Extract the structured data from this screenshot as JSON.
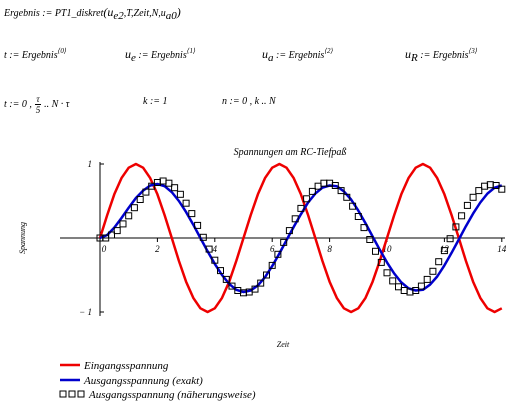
{
  "equations": {
    "line1": {
      "lhs": "Ergebnis",
      "assign": ":=",
      "func": "PT1_diskret",
      "arg1_main": "u",
      "arg1_sub": "e2",
      "args_mid": ",T,Zeit,N,u",
      "arg_last_sub": "a0"
    },
    "line2": [
      {
        "var": "t",
        "sub": "",
        "rhs": "Ergebnis",
        "sup": "⟨0⟩"
      },
      {
        "var": "u",
        "sub": "e",
        "rhs": "Ergebnis",
        "sup": "⟨1⟩"
      },
      {
        "var": "u",
        "sub": "a",
        "rhs": "Ergebnis",
        "sup": "⟨2⟩"
      },
      {
        "var": "u",
        "sub": "R",
        "rhs": "Ergebnis",
        "sup": "⟨3⟩"
      }
    ],
    "line3": {
      "t_def_prefix": "t := 0 ,",
      "frac_num": "τ",
      "frac_den": "5",
      "t_def_suffix": ".. N · τ",
      "k_def": "k := 1",
      "n_def": "n := 0 , k .. N"
    }
  },
  "chart_data": {
    "type": "line",
    "title": "Spannungen am RC-Tiefpaß",
    "xlabel": "Zeit",
    "ylabel": "Spannung",
    "xlim": [
      -1,
      14
    ],
    "ylim": [
      -1,
      1
    ],
    "xticks": [
      0,
      2,
      4,
      6,
      8,
      10,
      12,
      14
    ],
    "yticks": [
      -1,
      1
    ],
    "ytick_labels": [
      "− 1",
      "1"
    ],
    "grid": false,
    "colors": {
      "input": "#ee0000",
      "exact": "#0000cc",
      "approx": "#000000"
    },
    "series": [
      {
        "name": "Eingangsspannung",
        "style": "line",
        "color": "#ee0000",
        "x": [
          0,
          0.25,
          0.5,
          0.75,
          1,
          1.25,
          1.5,
          1.75,
          2,
          2.25,
          2.5,
          2.75,
          3,
          3.25,
          3.5,
          3.75,
          4,
          4.25,
          4.5,
          4.75,
          5,
          5.25,
          5.5,
          5.75,
          6,
          6.25,
          6.5,
          6.75,
          7,
          7.25,
          7.5,
          7.75,
          8,
          8.25,
          8.5,
          8.75,
          9,
          9.25,
          9.5,
          9.75,
          10,
          10.25,
          10.5,
          10.75,
          11,
          11.25,
          11.5,
          11.75,
          12,
          12.25,
          12.5,
          12.75,
          13,
          13.25,
          13.5,
          13.75,
          14
        ],
        "y": [
          0,
          0.31,
          0.59,
          0.81,
          0.95,
          1,
          0.95,
          0.81,
          0.59,
          0.31,
          0,
          -0.31,
          -0.59,
          -0.81,
          -0.95,
          -1,
          -0.95,
          -0.81,
          -0.59,
          -0.31,
          0,
          0.31,
          0.59,
          0.81,
          0.95,
          1,
          0.95,
          0.81,
          0.59,
          0.31,
          0,
          -0.31,
          -0.59,
          -0.81,
          -0.95,
          -1,
          -0.95,
          -0.81,
          -0.59,
          -0.31,
          0,
          0.31,
          0.59,
          0.81,
          0.95,
          1,
          0.95,
          0.81,
          0.59,
          0.31,
          0,
          -0.31,
          -0.59,
          -0.81,
          -0.95,
          -1,
          -0.95
        ]
      },
      {
        "name": "Ausgangsspannung (exakt)",
        "style": "line",
        "color": "#0000cc",
        "x": [
          0,
          0.25,
          0.5,
          0.75,
          1,
          1.25,
          1.5,
          1.75,
          2,
          2.25,
          2.5,
          2.75,
          3,
          3.25,
          3.5,
          3.75,
          4,
          4.25,
          4.5,
          4.75,
          5,
          5.25,
          5.5,
          5.75,
          6,
          6.25,
          6.5,
          6.75,
          7,
          7.25,
          7.5,
          7.75,
          8,
          8.25,
          8.5,
          8.75,
          9,
          9.25,
          9.5,
          9.75,
          10,
          10.25,
          10.5,
          10.75,
          11,
          11.25,
          11.5,
          11.75,
          12,
          12.25,
          12.5,
          12.75,
          13,
          13.25,
          13.5,
          13.75,
          14
        ],
        "y": [
          0,
          0.04,
          0.14,
          0.27,
          0.41,
          0.54,
          0.64,
          0.71,
          0.73,
          0.7,
          0.62,
          0.5,
          0.35,
          0.18,
          0,
          -0.18,
          -0.35,
          -0.5,
          -0.62,
          -0.7,
          -0.73,
          -0.71,
          -0.64,
          -0.53,
          -0.38,
          -0.21,
          -0.03,
          0.15,
          0.32,
          0.48,
          0.6,
          0.68,
          0.71,
          0.7,
          0.63,
          0.52,
          0.37,
          0.2,
          0.02,
          -0.16,
          -0.33,
          -0.48,
          -0.6,
          -0.68,
          -0.71,
          -0.7,
          -0.63,
          -0.52,
          -0.37,
          -0.2,
          -0.02,
          0.16,
          0.33,
          0.48,
          0.6,
          0.68,
          0.71
        ]
      },
      {
        "name": "Ausgangsspannung (näherungsweise)",
        "style": "squares",
        "color": "#000000",
        "x": [
          0,
          0.2,
          0.4,
          0.6,
          0.8,
          1,
          1.2,
          1.4,
          1.6,
          1.8,
          2,
          2.2,
          2.4,
          2.6,
          2.8,
          3,
          3.2,
          3.4,
          3.6,
          3.8,
          4,
          4.2,
          4.4,
          4.6,
          4.8,
          5,
          5.2,
          5.4,
          5.6,
          5.8,
          6,
          6.2,
          6.4,
          6.6,
          6.8,
          7,
          7.2,
          7.4,
          7.6,
          7.8,
          8,
          8.2,
          8.4,
          8.6,
          8.8,
          9,
          9.2,
          9.4,
          9.6,
          9.8,
          10,
          10.2,
          10.4,
          10.6,
          10.8,
          11,
          11.2,
          11.4,
          11.6,
          11.8,
          12,
          12.2,
          12.4,
          12.6,
          12.8,
          13,
          13.2,
          13.4,
          13.6,
          13.8,
          14
        ],
        "y": [
          0,
          0,
          0.04,
          0.1,
          0.19,
          0.3,
          0.41,
          0.52,
          0.62,
          0.7,
          0.75,
          0.77,
          0.74,
          0.68,
          0.59,
          0.47,
          0.33,
          0.17,
          0.01,
          -0.15,
          -0.3,
          -0.44,
          -0.56,
          -0.65,
          -0.71,
          -0.74,
          -0.73,
          -0.69,
          -0.61,
          -0.5,
          -0.37,
          -0.22,
          -0.06,
          0.1,
          0.26,
          0.4,
          0.53,
          0.63,
          0.7,
          0.74,
          0.74,
          0.71,
          0.64,
          0.55,
          0.43,
          0.29,
          0.14,
          -0.02,
          -0.18,
          -0.33,
          -0.47,
          -0.58,
          -0.66,
          -0.71,
          -0.73,
          -0.71,
          -0.65,
          -0.56,
          -0.45,
          -0.32,
          -0.17,
          -0.01,
          0.15,
          0.3,
          0.44,
          0.55,
          0.64,
          0.7,
          0.72,
          0.71,
          0.66
        ]
      }
    ]
  }
}
